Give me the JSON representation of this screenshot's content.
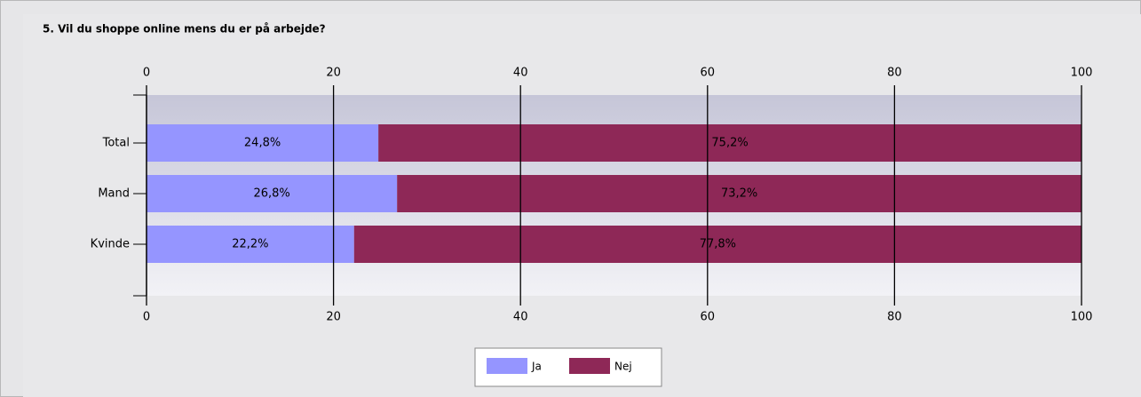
{
  "chart_data": {
    "type": "stacked-bar-horizontal",
    "title": "5. Vil du shoppe online mens du er på arbejde?",
    "categories": [
      "Total",
      "Mand",
      "Kvinde"
    ],
    "series": [
      {
        "name": "Ja",
        "color": "#9595ff",
        "values": [
          24.8,
          26.8,
          22.2
        ],
        "value_labels": [
          "24,8%",
          "26,8%",
          "22,2%"
        ]
      },
      {
        "name": "Nej",
        "color": "#8e2857",
        "values": [
          75.2,
          73.2,
          77.8
        ],
        "value_labels": [
          "75,2%",
          "73,2%",
          "77,8%"
        ]
      }
    ],
    "xlim": [
      0,
      100
    ],
    "xticks": [
      0,
      20,
      40,
      60,
      80,
      100
    ],
    "grid": true,
    "legend": "bottom"
  }
}
